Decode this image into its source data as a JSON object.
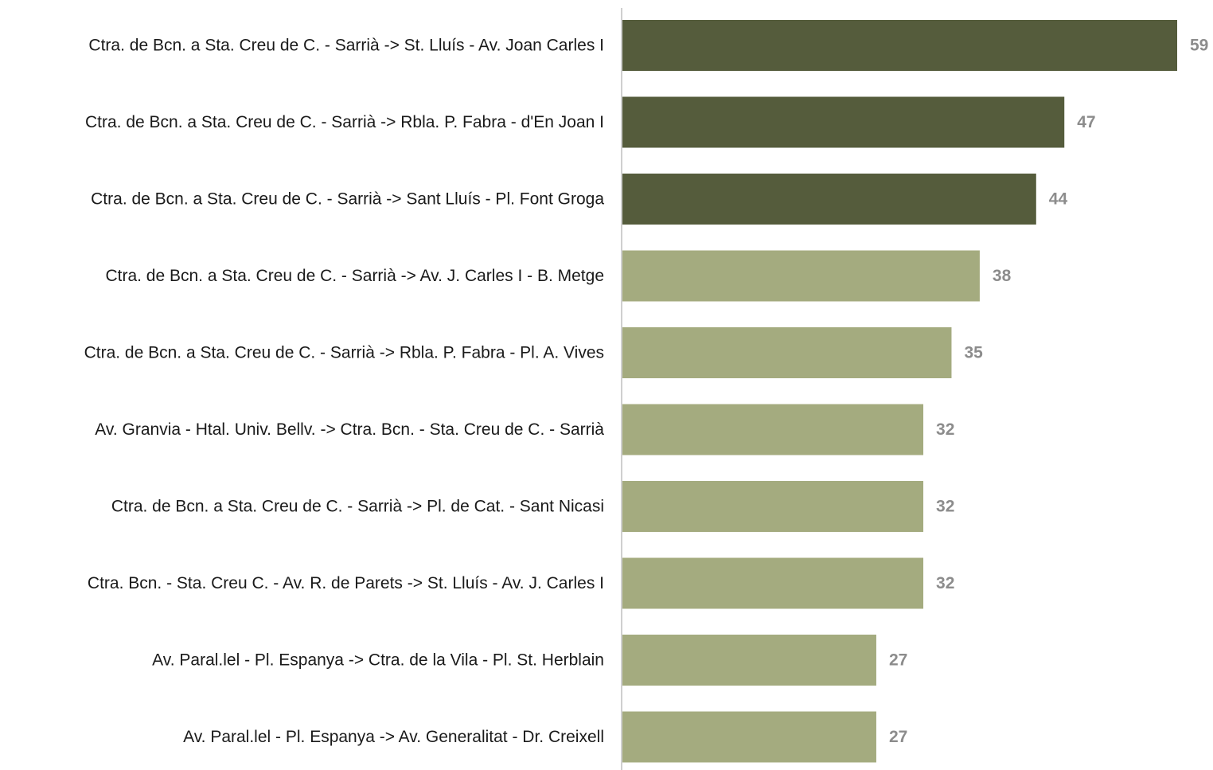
{
  "chart_data": {
    "type": "bar",
    "orientation": "horizontal",
    "title": "",
    "xlabel": "",
    "ylabel": "",
    "xlim": [
      0,
      59
    ],
    "grid": false,
    "legend": "none",
    "categories": [
      "Ctra. de Bcn. a Sta. Creu de C. - Sarrià -> St. Lluís - Av. Joan Carles I",
      "Ctra. de Bcn. a Sta. Creu de C. - Sarrià -> Rbla. P. Fabra - d'En Joan I",
      "Ctra. de Bcn. a Sta. Creu de C. - Sarrià -> Sant Lluís - Pl. Font Groga",
      "Ctra. de Bcn. a Sta. Creu de C. - Sarrià -> Av. J. Carles I - B. Metge",
      "Ctra. de Bcn. a Sta. Creu de C. - Sarrià -> Rbla. P. Fabra - Pl. A. Vives",
      "Av. Granvia - Htal. Univ. Bellv. -> Ctra. Bcn. - Sta. Creu de C. - Sarrià",
      "Ctra. de Bcn. a Sta. Creu de C. - Sarrià -> Pl. de Cat. - Sant Nicasi",
      "Ctra. Bcn. - Sta. Creu C. - Av. R. de Parets -> St. Lluís - Av. J. Carles I",
      "Av. Paral.lel - Pl. Espanya -> Ctra. de la Vila -  Pl. St. Herblain",
      "Av. Paral.lel - Pl. Espanya -> Av. Generalitat - Dr. Creixell"
    ],
    "values": [
      59,
      47,
      44,
      38,
      35,
      32,
      32,
      32,
      27,
      27
    ],
    "value_labels": [
      "59",
      "47",
      "44",
      "38",
      "35",
      "32",
      "32",
      "32",
      "27",
      "27"
    ],
    "highlighted": [
      true,
      true,
      true,
      false,
      false,
      false,
      false,
      false,
      false,
      false
    ],
    "colors": {
      "highlight_bar": "#555c3c",
      "normal_bar": "#a4ab7f",
      "axis_line": "#bfbfbf",
      "category_text": "#1a1a1a",
      "value_text": "#8c8c8c"
    }
  }
}
